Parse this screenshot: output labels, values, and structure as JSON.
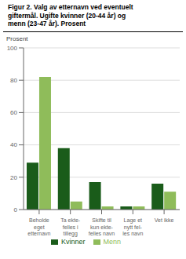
{
  "chart_data": {
    "type": "bar",
    "title": "Figur 2. Valg av etternavn ved eventuelt\ngiftermål. Ugifte kvinner (20-44 år) og\nmenn (23-47 år). Prosent",
    "y_label": "Prosent",
    "categories": [
      "Beholde\neget\netternavn",
      "Ta ekte-\nfelles i\ntillegg",
      "Skifte til\nkun ekte-\nfelles navn",
      "Lage et\nnytt fel-\nles navn",
      "Vet ikke"
    ],
    "series": [
      {
        "name": "Kvinner",
        "color": "#1a5c1a",
        "values": [
          29,
          38,
          17,
          2,
          16
        ]
      },
      {
        "name": "Menn",
        "color": "#8fbc5a",
        "values": [
          82,
          5,
          2,
          2,
          11
        ]
      }
    ],
    "ylim": [
      0,
      100
    ],
    "yticks": [
      0,
      20,
      40,
      60,
      80,
      100
    ],
    "grid": true,
    "legend": "bottom"
  }
}
